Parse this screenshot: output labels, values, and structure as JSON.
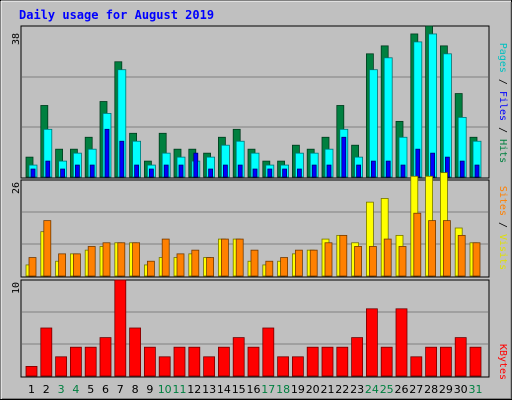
{
  "title": "Daily usage for August 2019",
  "colors": {
    "background": "#c0c0c0",
    "title": "#0000ff",
    "grid": "#808080",
    "hits": "#008040",
    "files": "#00ffff",
    "pages": "#0000ff",
    "visits": "#ffff00",
    "sites": "#ff8000",
    "kbytes": "#ff0000",
    "weekend_day": "#008040",
    "weekday": "#000000"
  },
  "legends": {
    "hits_panel": {
      "parts": [
        {
          "text": "Pages",
          "color": "#00c0c0"
        },
        {
          "text": " / ",
          "color": "#000000"
        },
        {
          "text": "Files",
          "color": "#0000ff"
        },
        {
          "text": " / ",
          "color": "#000000"
        },
        {
          "text": "Hits",
          "color": "#008040"
        }
      ]
    },
    "sites_panel": {
      "parts": [
        {
          "text": "Sites",
          "color": "#ff8000"
        },
        {
          "text": " / ",
          "color": "#000000"
        },
        {
          "text": "Visits",
          "color": "#e0e000"
        }
      ]
    },
    "kbytes_panel": {
      "parts": [
        {
          "text": "KBytes",
          "color": "#ff0000"
        }
      ]
    }
  },
  "chart_data": {
    "type": "bar",
    "title": "Daily usage for August 2019",
    "categories": [
      "1",
      "2",
      "3",
      "4",
      "5",
      "6",
      "7",
      "8",
      "9",
      "10",
      "11",
      "12",
      "13",
      "14",
      "15",
      "16",
      "17",
      "18",
      "19",
      "20",
      "21",
      "22",
      "23",
      "24",
      "25",
      "26",
      "27",
      "28",
      "29",
      "30",
      "31"
    ],
    "weekend_days": [
      "3",
      "4",
      "10",
      "11",
      "17",
      "18",
      "24",
      "25",
      "31"
    ],
    "panels": [
      {
        "name": "hits",
        "ymax": 38,
        "ymax_label": "38",
        "series": [
          {
            "name": "Hits",
            "color": "#008040",
            "values": [
              5,
              18,
              7,
              7,
              10,
              19,
              29,
              11,
              4,
              11,
              7,
              7,
              6,
              10,
              12,
              7,
              4,
              4,
              8,
              7,
              10,
              18,
              8,
              31,
              33,
              14,
              36,
              38,
              33,
              21,
              10
            ]
          },
          {
            "name": "Files",
            "color": "#00ffff",
            "values": [
              3,
              12,
              4,
              6,
              7,
              16,
              27,
              9,
              3,
              6,
              5,
              4,
              5,
              8,
              9,
              6,
              3,
              3,
              6,
              6,
              7,
              12,
              5,
              27,
              30,
              10,
              34,
              36,
              31,
              15,
              9
            ]
          },
          {
            "name": "Pages",
            "color": "#0000ff",
            "values": [
              2,
              4,
              2,
              3,
              3,
              12,
              9,
              3,
              2,
              3,
              3,
              6,
              2,
              3,
              3,
              2,
              2,
              2,
              2,
              3,
              3,
              10,
              3,
              4,
              4,
              3,
              7,
              6,
              5,
              4,
              3
            ]
          }
        ]
      },
      {
        "name": "sites",
        "ymax": 26,
        "ymax_label": "26",
        "series": [
          {
            "name": "Visits",
            "color": "#ffff00",
            "values": [
              3,
              12,
              4,
              6,
              7,
              8,
              9,
              9,
              3,
              5,
              5,
              6,
              5,
              10,
              10,
              4,
              3,
              4,
              6,
              7,
              10,
              11,
              9,
              20,
              21,
              11,
              27,
              27,
              28,
              13,
              9
            ]
          },
          {
            "name": "Sites",
            "color": "#ff8000",
            "values": [
              5,
              15,
              6,
              6,
              8,
              9,
              9,
              9,
              4,
              10,
              6,
              7,
              5,
              10,
              10,
              7,
              4,
              5,
              7,
              7,
              9,
              11,
              8,
              8,
              10,
              8,
              17,
              15,
              15,
              11,
              9
            ]
          }
        ]
      },
      {
        "name": "kbytes",
        "ymax": 10,
        "ymax_label": "10",
        "series": [
          {
            "name": "KBytes",
            "color": "#ff0000",
            "values": [
              1,
              5,
              2,
              3,
              3,
              4,
              10,
              5,
              3,
              2,
              3,
              3,
              2,
              3,
              4,
              3,
              5,
              2,
              2,
              3,
              3,
              3,
              4,
              7,
              3,
              7,
              2,
              3,
              3,
              4,
              3
            ]
          }
        ]
      }
    ]
  }
}
